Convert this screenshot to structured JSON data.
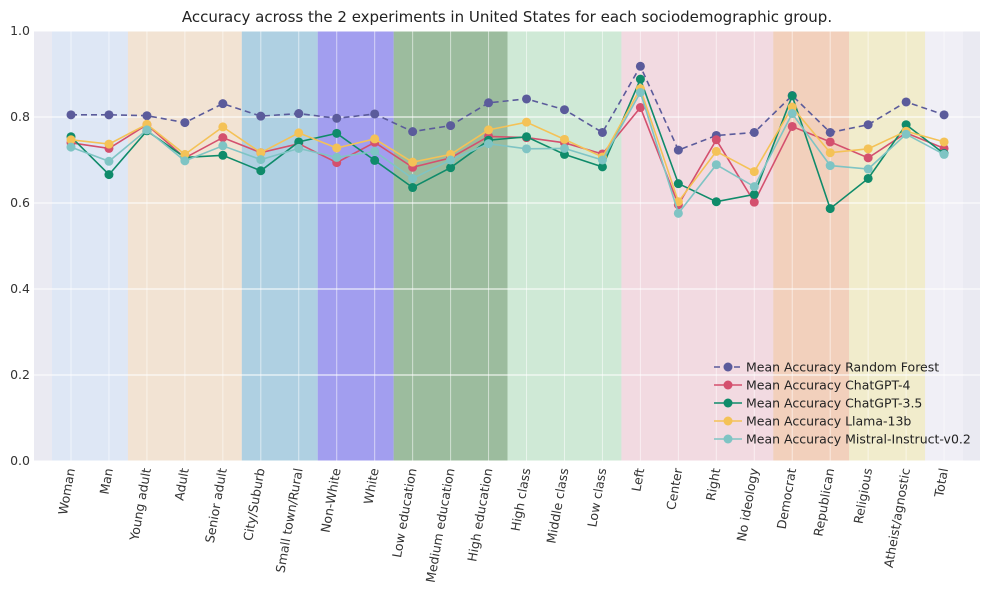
{
  "chart_data": {
    "type": "line",
    "title": "Accuracy across the 2 experiments in United States for each sociodemographic group.",
    "xlabel": "",
    "ylabel": "",
    "ylim": [
      0,
      1.0
    ],
    "yticks": [
      0.0,
      0.2,
      0.4,
      0.6,
      0.8,
      1.0
    ],
    "ytick_labels": [
      "0.0",
      "0.2",
      "0.4",
      "0.6",
      "0.8",
      "1.0"
    ],
    "grid": true,
    "legend_position": "lower-right",
    "categories": [
      "Woman",
      "Man",
      "Young adult",
      "Adult",
      "Senior adult",
      "City/Suburb",
      "Small town/Rural",
      "Non-White",
      "White",
      "Low education",
      "Medium education",
      "High education",
      "High class",
      "Middle class",
      "Low class",
      "Left",
      "Center",
      "Right",
      "No ideology",
      "Democrat",
      "Republican",
      "Religious",
      "Atheist/agnostic",
      "Total"
    ],
    "bands": [
      {
        "start": 0,
        "end": 1,
        "color": "#dde7f5"
      },
      {
        "start": 2,
        "end": 4,
        "color": "#f3e2cf"
      },
      {
        "start": 5,
        "end": 6,
        "color": "#a9cde0"
      },
      {
        "start": 7,
        "end": 8,
        "color": "#9a96ee"
      },
      {
        "start": 9,
        "end": 11,
        "color": "#93b795"
      },
      {
        "start": 12,
        "end": 14,
        "color": "#cce9d3"
      },
      {
        "start": 15,
        "end": 18,
        "color": "#f3d8df"
      },
      {
        "start": 19,
        "end": 20,
        "color": "#f3cdb6"
      },
      {
        "start": 21,
        "end": 22,
        "color": "#f2ecc8"
      },
      {
        "start": 23,
        "end": 23,
        "color": "#f1f0f6"
      }
    ],
    "series": [
      {
        "name": "Mean Accuracy Random Forest",
        "color": "#5b5b9b",
        "dashed": true,
        "values": [
          0.805,
          0.805,
          0.803,
          0.787,
          0.831,
          0.802,
          0.808,
          0.797,
          0.807,
          0.766,
          0.78,
          0.833,
          0.842,
          0.817,
          0.764,
          0.918,
          0.723,
          0.757,
          0.764,
          0.85,
          0.764,
          0.782,
          0.835,
          0.805
        ]
      },
      {
        "name": "Mean Accuracy ChatGPT-4",
        "color": "#d4506e",
        "dashed": false,
        "values": [
          0.74,
          0.727,
          0.782,
          0.705,
          0.752,
          0.717,
          0.738,
          0.694,
          0.741,
          0.683,
          0.705,
          0.755,
          0.752,
          0.74,
          0.714,
          0.822,
          0.596,
          0.747,
          0.602,
          0.778,
          0.742,
          0.705,
          0.763,
          0.727
        ]
      },
      {
        "name": "Mean Accuracy ChatGPT-3.5",
        "color": "#0f8b6a",
        "dashed": false,
        "values": [
          0.754,
          0.666,
          0.768,
          0.706,
          0.711,
          0.675,
          0.742,
          0.762,
          0.699,
          0.636,
          0.682,
          0.746,
          0.754,
          0.713,
          0.684,
          0.888,
          0.645,
          0.603,
          0.62,
          0.849,
          0.587,
          0.657,
          0.782,
          0.715
        ]
      },
      {
        "name": "Mean Accuracy Llama-13b",
        "color": "#f4c257",
        "dashed": false,
        "values": [
          0.747,
          0.737,
          0.783,
          0.713,
          0.777,
          0.717,
          0.763,
          0.728,
          0.749,
          0.695,
          0.713,
          0.77,
          0.788,
          0.748,
          0.707,
          0.866,
          0.603,
          0.72,
          0.673,
          0.823,
          0.717,
          0.726,
          0.767,
          0.742
        ]
      },
      {
        "name": "Mean Accuracy Mistral-Instruct-v0.2",
        "color": "#7fc4c4",
        "dashed": false,
        "values": [
          0.73,
          0.697,
          0.77,
          0.698,
          0.733,
          0.701,
          0.727,
          0.706,
          0.72,
          0.657,
          0.7,
          0.738,
          0.726,
          0.727,
          0.7,
          0.857,
          0.576,
          0.689,
          0.638,
          0.808,
          0.687,
          0.679,
          0.76,
          0.713
        ]
      }
    ]
  }
}
